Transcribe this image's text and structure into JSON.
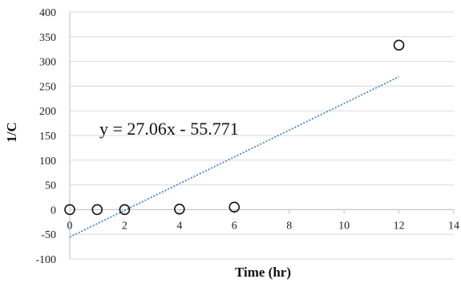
{
  "chart_data": {
    "type": "scatter",
    "xlabel": "Time (hr)",
    "ylabel": "1/C",
    "xlim": [
      0,
      14
    ],
    "ylim": [
      -100,
      400
    ],
    "xticks": [
      0,
      2,
      4,
      6,
      8,
      10,
      12,
      14
    ],
    "yticks": [
      -100,
      -50,
      0,
      50,
      100,
      150,
      200,
      250,
      300,
      350,
      400
    ],
    "xtick_labels": [
      "0",
      "2",
      "4",
      "6",
      "8",
      "10",
      "12",
      "14"
    ],
    "ytick_labels": [
      "-100",
      "-50",
      "0",
      "50",
      "100",
      "150",
      "200",
      "250",
      "300",
      "350",
      "400"
    ],
    "grid": {
      "horizontal": true,
      "vertical": false
    },
    "series": [
      {
        "marker": "open-circle",
        "x": [
          0,
          1,
          2,
          4,
          6,
          12
        ],
        "y": [
          0,
          0,
          0,
          1,
          5,
          333
        ]
      }
    ],
    "trendline": {
      "style": "dotted",
      "color": "#4a86c5",
      "slope": 27.06,
      "intercept": -55.771,
      "x_range": [
        0,
        12
      ],
      "equation": "y = 27.06x - 55.771"
    }
  }
}
